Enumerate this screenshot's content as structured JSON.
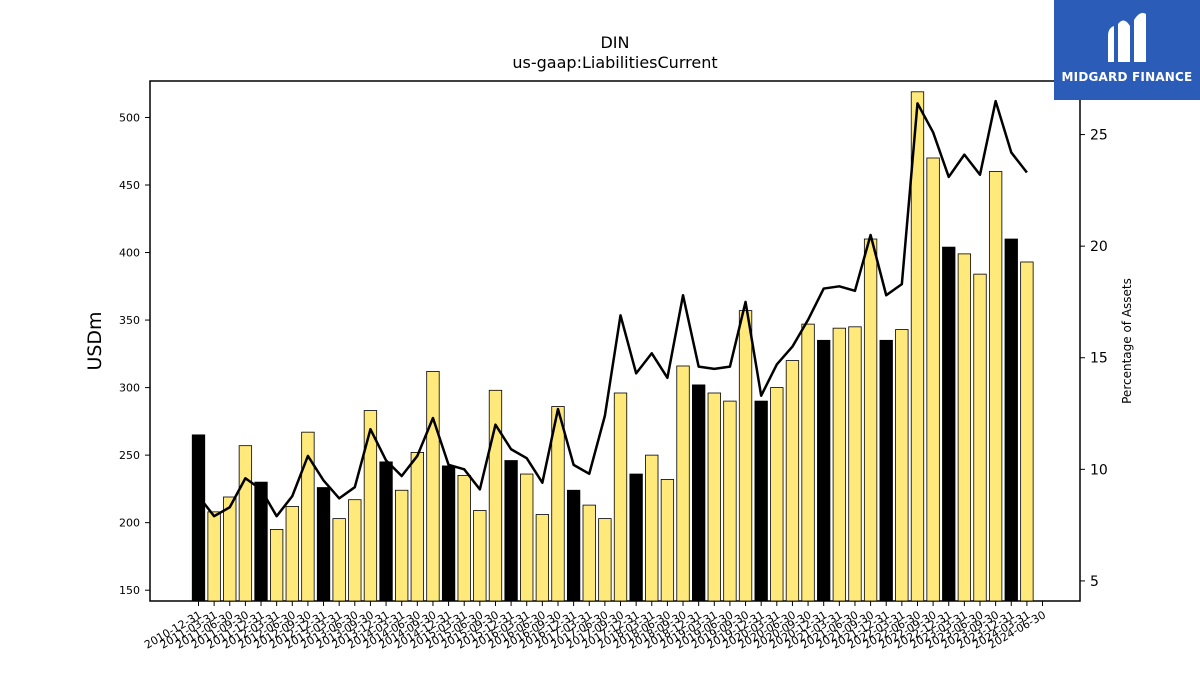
{
  "chart_data": {
    "type": "bar",
    "title": "DIN",
    "subtitle": "us-gaap:LiabilitiesCurrent",
    "ylabel": "USDm",
    "y2label": "Percentage of Assets",
    "ylim": [
      142,
      527
    ],
    "y2lim": [
      4.1,
      27.4
    ],
    "yticks": [
      150,
      200,
      250,
      300,
      350,
      400,
      450,
      500
    ],
    "y2ticks": [
      5,
      10,
      15,
      20,
      25
    ],
    "grid": false,
    "bar_colors": {
      "fiscal_year_end": "#000000",
      "interim": "#ffe97a"
    },
    "line_color": "#000000",
    "categories": [
      "2010-12-31",
      "2011-03-31",
      "2011-06-30",
      "2011-09-30",
      "2011-12-31",
      "2012-03-31",
      "2012-06-30",
      "2012-09-30",
      "2012-12-31",
      "2013-03-31",
      "2013-06-30",
      "2013-09-30",
      "2013-12-31",
      "2014-03-31",
      "2014-06-30",
      "2014-09-30",
      "2014-12-31",
      "2015-03-31",
      "2015-06-30",
      "2015-09-30",
      "2015-12-31",
      "2016-03-31",
      "2016-06-30",
      "2016-09-30",
      "2016-12-31",
      "2017-03-31",
      "2017-06-30",
      "2017-09-30",
      "2017-12-31",
      "2018-03-31",
      "2018-06-30",
      "2018-09-30",
      "2018-12-31",
      "2019-03-31",
      "2019-06-30",
      "2019-09-30",
      "2019-12-31",
      "2020-03-31",
      "2020-06-30",
      "2020-09-30",
      "2020-12-31",
      "2021-03-31",
      "2021-06-30",
      "2021-09-30",
      "2021-12-31",
      "2022-03-31",
      "2022-06-30",
      "2022-09-30",
      "2022-12-31",
      "2023-03-31",
      "2023-06-30",
      "2023-09-30",
      "2023-12-31",
      "2024-03-31",
      "2024-06-30"
    ],
    "fiscal_year_end": [
      true,
      false,
      false,
      false,
      true,
      false,
      false,
      false,
      true,
      false,
      false,
      false,
      true,
      false,
      false,
      false,
      true,
      false,
      false,
      false,
      true,
      false,
      false,
      false,
      true,
      false,
      false,
      false,
      true,
      false,
      false,
      false,
      true,
      false,
      false,
      false,
      true,
      false,
      false,
      false,
      true,
      false,
      false,
      false,
      true,
      false,
      false,
      false,
      true,
      false,
      false,
      false,
      true,
      false,
      false
    ],
    "series": [
      {
        "values": [
          265,
          208,
          219,
          257,
          230,
          195,
          212,
          267,
          226,
          203,
          217,
          283,
          245,
          224,
          252,
          312,
          242,
          235,
          209,
          298,
          246,
          236,
          206,
          286,
          224,
          213,
          203,
          296,
          236,
          250,
          232,
          316,
          302,
          296,
          290,
          357,
          290,
          300,
          320,
          347,
          335,
          344,
          345,
          410,
          335,
          343,
          519,
          470,
          404,
          399,
          384,
          460,
          410,
          393,
          null
        ]
      },
      {
        "type": "line",
        "values": [
          8.8,
          7.9,
          8.3,
          9.6,
          9.1,
          7.9,
          8.8,
          10.6,
          9.5,
          8.7,
          9.2,
          11.8,
          10.4,
          9.7,
          10.6,
          12.3,
          10.2,
          10.0,
          9.1,
          12.0,
          10.9,
          10.5,
          9.4,
          12.7,
          10.2,
          9.8,
          12.4,
          16.9,
          14.3,
          15.2,
          14.1,
          17.8,
          14.6,
          14.5,
          14.6,
          17.5,
          13.3,
          14.7,
          15.5,
          16.7,
          18.1,
          18.2,
          18.0,
          20.5,
          17.8,
          18.3,
          26.4,
          25.1,
          23.1,
          24.1,
          23.2,
          26.5,
          24.2,
          23.3,
          null
        ]
      }
    ]
  },
  "brand": {
    "name": "MIDGARD FINANCE",
    "color": "#2b5cb8"
  }
}
